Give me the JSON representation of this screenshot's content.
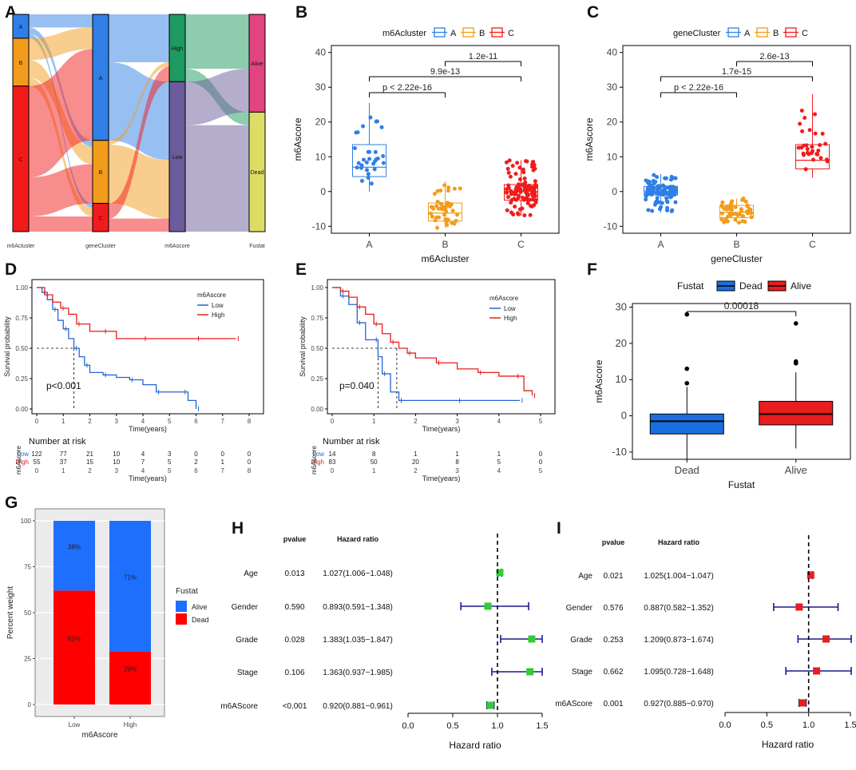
{
  "figure": {
    "panel_labels": [
      "A",
      "B",
      "C",
      "D",
      "E",
      "F",
      "G",
      "H",
      "I"
    ]
  },
  "chart_data": [
    {
      "panel": "A",
      "type": "sankey",
      "axes": [
        "m6Acluster",
        "geneCluster",
        "m6Ascore",
        "Fustat"
      ],
      "columns": [
        {
          "name": "m6Acluster",
          "nodes": [
            {
              "label": "A",
              "value": 0.11,
              "color": "#2f7fe6"
            },
            {
              "label": "B",
              "value": 0.22,
              "color": "#f39c1b"
            },
            {
              "label": "C",
              "value": 0.67,
              "color": "#f21b1b"
            }
          ]
        },
        {
          "name": "geneCluster",
          "nodes": [
            {
              "label": "A",
              "value": 0.58,
              "color": "#2f7fe6"
            },
            {
              "label": "B",
              "value": 0.29,
              "color": "#f39c1b"
            },
            {
              "label": "C",
              "value": 0.13,
              "color": "#f21b1b"
            }
          ]
        },
        {
          "name": "m6Ascore",
          "nodes": [
            {
              "label": "High",
              "value": 0.31,
              "color": "#1e9960"
            },
            {
              "label": "Low",
              "value": 0.69,
              "color": "#6b5b9a"
            }
          ]
        },
        {
          "name": "Fustat",
          "nodes": [
            {
              "label": "Alive",
              "value": 0.45,
              "color": "#e0457f"
            },
            {
              "label": "Dead",
              "value": 0.55,
              "color": "#dddd66"
            }
          ]
        }
      ]
    },
    {
      "panel": "B",
      "type": "boxplot",
      "legend_title": "m6Acluster",
      "groups": [
        "A",
        "B",
        "C"
      ],
      "colors": [
        "#2f7fe6",
        "#f39c1b",
        "#f21b1b"
      ],
      "stats": [
        {
          "min": 0,
          "q1": 4.3,
          "median": 7,
          "q3": 13.5,
          "max": 25.5
        },
        {
          "min": -10.5,
          "q1": -8.5,
          "median": -6.2,
          "q3": -3.3,
          "max": 3
        },
        {
          "min": -7,
          "q1": -2.5,
          "median": 0,
          "q3": 2,
          "max": 9
        }
      ],
      "n_points": [
        30,
        45,
        110
      ],
      "comparisons": [
        {
          "pair": [
            "A",
            "B"
          ],
          "label": "p < 2.22e-16"
        },
        {
          "pair": [
            "A",
            "C"
          ],
          "label": "9.9e-13"
        },
        {
          "pair": [
            "B",
            "C"
          ],
          "label": "1.2e-11"
        }
      ],
      "xlabel": "m6Acluster",
      "ylabel": "m6Ascore",
      "ylim": [
        -12,
        42
      ],
      "yticks": [
        -10,
        0,
        10,
        20,
        30,
        40
      ]
    },
    {
      "panel": "C",
      "type": "boxplot",
      "legend_title": "geneCluster",
      "groups": [
        "A",
        "B",
        "C"
      ],
      "colors": [
        "#2f7fe6",
        "#f39c1b",
        "#f21b1b"
      ],
      "stats": [
        {
          "min": -6,
          "q1": -1,
          "median": 0,
          "q3": 1.5,
          "max": 5
        },
        {
          "min": -9,
          "q1": -7.5,
          "median": -6,
          "q3": -4,
          "max": -2
        },
        {
          "min": 4,
          "q1": 6.5,
          "median": 9,
          "q3": 13.5,
          "max": 28
        }
      ],
      "n_points": [
        100,
        50,
        30
      ],
      "comparisons": [
        {
          "pair": [
            "A",
            "B"
          ],
          "label": "p < 2.22e-16"
        },
        {
          "pair": [
            "A",
            "C"
          ],
          "label": "1.7e-15"
        },
        {
          "pair": [
            "B",
            "C"
          ],
          "label": "2.6e-13"
        }
      ],
      "xlabel": "geneCluster",
      "ylabel": "m6Ascore",
      "ylim": [
        -12,
        42
      ],
      "yticks": [
        -10,
        0,
        10,
        20,
        30,
        40
      ]
    },
    {
      "panel": "D",
      "type": "line",
      "subtype": "kaplan-meier",
      "legend_title": "m6Ascore",
      "series": [
        {
          "name": "Low",
          "color": "#2365d9",
          "x": [
            0,
            0.2,
            0.4,
            0.6,
            0.8,
            1.0,
            1.2,
            1.4,
            1.6,
            1.8,
            2.0,
            2.5,
            3.0,
            3.5,
            4.0,
            4.5,
            5.0,
            5.5,
            5.7,
            6.0
          ],
          "y": [
            1,
            0.96,
            0.9,
            0.82,
            0.73,
            0.66,
            0.58,
            0.5,
            0.43,
            0.36,
            0.3,
            0.28,
            0.26,
            0.24,
            0.2,
            0.14,
            0.14,
            0.14,
            0.07,
            0.0
          ]
        },
        {
          "name": "High",
          "color": "#e81d1d",
          "x": [
            0,
            0.3,
            0.6,
            0.9,
            1.2,
            1.5,
            2.0,
            2.5,
            3.0,
            4.0,
            5.0,
            6.0,
            7.0,
            7.5
          ],
          "y": [
            1,
            0.94,
            0.88,
            0.83,
            0.78,
            0.7,
            0.64,
            0.64,
            0.58,
            0.58,
            0.58,
            0.58,
            0.58,
            0.58
          ]
        }
      ],
      "median_lines": [
        1.4
      ],
      "annotation": "p<0.001",
      "xlabel": "Time(years)",
      "ylabel": "Survival probability",
      "xticks": [
        0,
        1,
        2,
        3,
        4,
        5,
        6,
        7,
        8
      ],
      "yticks": [
        "0.00",
        "0.25",
        "0.50",
        "0.75",
        "1.00"
      ],
      "risk_table": {
        "title": "Number at risk",
        "ylabel": "m6Ascore",
        "rows": [
          {
            "name": "Low",
            "color": "#2365d9",
            "values": [
              "122",
              "77",
              "21",
              "10",
              "4",
              "3",
              "0",
              "0",
              "0"
            ]
          },
          {
            "name": "High",
            "color": "#e81d1d",
            "values": [
              "55",
              "37",
              "15",
              "10",
              "7",
              "5",
              "2",
              "1",
              "0"
            ]
          }
        ],
        "ticks": [
          "0",
          "1",
          "2",
          "3",
          "4",
          "5",
          "6",
          "7",
          "8"
        ],
        "xlabel": "Time(years)"
      }
    },
    {
      "panel": "E",
      "type": "line",
      "subtype": "kaplan-meier",
      "legend_title": "m6Ascore",
      "series": [
        {
          "name": "Low",
          "color": "#2365d9",
          "x": [
            0,
            0.2,
            0.4,
            0.6,
            0.8,
            1.0,
            1.1,
            1.2,
            1.4,
            1.6,
            2.0,
            3.0,
            4.0,
            4.5
          ],
          "y": [
            1,
            0.93,
            0.86,
            0.71,
            0.57,
            0.57,
            0.43,
            0.29,
            0.14,
            0.07,
            0.07,
            0.07,
            0.07,
            0.07
          ]
        },
        {
          "name": "High",
          "color": "#e81d1d",
          "x": [
            0,
            0.2,
            0.4,
            0.6,
            0.8,
            1.0,
            1.2,
            1.4,
            1.6,
            1.8,
            2.0,
            2.5,
            3.0,
            3.5,
            4.0,
            4.4,
            4.6,
            4.8
          ],
          "y": [
            1,
            0.97,
            0.92,
            0.84,
            0.78,
            0.7,
            0.62,
            0.55,
            0.5,
            0.46,
            0.42,
            0.38,
            0.33,
            0.3,
            0.27,
            0.27,
            0.15,
            0.11
          ]
        }
      ],
      "median_lines": [
        1.1,
        1.55
      ],
      "annotation": "p=0.040",
      "xlabel": "Time(years)",
      "ylabel": "Survival probability",
      "xticks": [
        0,
        1,
        2,
        3,
        4,
        5
      ],
      "yticks": [
        "0.00",
        "0.25",
        "0.50",
        "0.75",
        "1.00"
      ],
      "risk_table": {
        "title": "Number at risk",
        "ylabel": "m6Ascore",
        "rows": [
          {
            "name": "Low",
            "color": "#2365d9",
            "values": [
              "14",
              "8",
              "1",
              "1",
              "1",
              "0"
            ]
          },
          {
            "name": "High",
            "color": "#e81d1d",
            "values": [
              "83",
              "50",
              "20",
              "8",
              "5",
              "0"
            ]
          }
        ],
        "ticks": [
          "0",
          "1",
          "2",
          "3",
          "4",
          "5"
        ],
        "xlabel": "Time(years)"
      }
    },
    {
      "panel": "F",
      "type": "boxplot",
      "legend_title": "Fustat",
      "groups": [
        "Dead",
        "Alive"
      ],
      "colors": [
        "#1a6fe0",
        "#e81d1d"
      ],
      "stats": [
        {
          "min": -12,
          "q1": -5,
          "median": -1.5,
          "q3": 0.5,
          "max": 8
        },
        {
          "min": -9,
          "q1": -2.5,
          "median": 0.5,
          "q3": 4,
          "max": 12
        }
      ],
      "outliers": [
        [
          9,
          13,
          28
        ],
        [
          14.5,
          15,
          25.5
        ]
      ],
      "comparisons": [
        {
          "pair": [
            "Dead",
            "Alive"
          ],
          "label": "0.00018"
        }
      ],
      "xlabel": "Fustat",
      "ylabel": "m6Ascore",
      "ylim": [
        -12,
        31
      ],
      "yticks": [
        -10,
        0,
        10,
        20,
        30
      ]
    },
    {
      "panel": "G",
      "type": "bar",
      "stacked": true,
      "categories": [
        "Low",
        "High"
      ],
      "series": [
        {
          "name": "Dead",
          "color": "#ff0000",
          "values": [
            62,
            29
          ]
        },
        {
          "name": "Alive",
          "color": "#1f6fff",
          "values": [
            38,
            71
          ]
        }
      ],
      "labels": [
        [
          "62%",
          "38%"
        ],
        [
          "29%",
          "71%"
        ]
      ],
      "legend_title": "Fustat",
      "xlabel": "m6Ascore",
      "ylabel": "Percent weight",
      "ylim": [
        0,
        100
      ],
      "yticks": [
        0,
        25,
        50,
        75,
        100
      ]
    },
    {
      "panel": "H",
      "type": "forest",
      "headers": {
        "pvalue": "pvalue",
        "hr": "Hazard ratio"
      },
      "marker_color": "#33cc33",
      "rows": [
        {
          "label": "Age",
          "pvalue": "0.013",
          "hr_text": "1.027(1.006−1.048)",
          "hr": 1.027,
          "lo": 1.006,
          "hi": 1.048
        },
        {
          "label": "Gender",
          "pvalue": "0.590",
          "hr_text": "0.893(0.591−1.348)",
          "hr": 0.893,
          "lo": 0.591,
          "hi": 1.348
        },
        {
          "label": "Grade",
          "pvalue": "0.028",
          "hr_text": "1.383(1.035−1.847)",
          "hr": 1.383,
          "lo": 1.035,
          "hi": 1.847
        },
        {
          "label": "Stage",
          "pvalue": "0.106",
          "hr_text": "1.363(0.937−1.985)",
          "hr": 1.363,
          "lo": 0.937,
          "hi": 1.985
        },
        {
          "label": "m6AScore",
          "pvalue": "<0.001",
          "hr_text": "0.920(0.881−0.961)",
          "hr": 0.92,
          "lo": 0.881,
          "hi": 0.961
        }
      ],
      "xticks": [
        "0.0",
        "0.5",
        "1.0",
        "1.5"
      ],
      "xlabel": "Hazard ratio"
    },
    {
      "panel": "I",
      "type": "forest",
      "headers": {
        "pvalue": "pvalue",
        "hr": "Hazard ratio"
      },
      "marker_color": "#e81d1d",
      "rows": [
        {
          "label": "Age",
          "pvalue": "0.021",
          "hr_text": "1.025(1.004−1.047)",
          "hr": 1.025,
          "lo": 1.004,
          "hi": 1.047
        },
        {
          "label": "Gender",
          "pvalue": "0.576",
          "hr_text": "0.887(0.582−1.352)",
          "hr": 0.887,
          "lo": 0.582,
          "hi": 1.352
        },
        {
          "label": "Grade",
          "pvalue": "0.253",
          "hr_text": "1.209(0.873−1.674)",
          "hr": 1.209,
          "lo": 0.873,
          "hi": 1.674
        },
        {
          "label": "Stage",
          "pvalue": "0.662",
          "hr_text": "1.095(0.728−1.648)",
          "hr": 1.095,
          "lo": 0.728,
          "hi": 1.648
        },
        {
          "label": "m6AScore",
          "pvalue": "0.001",
          "hr_text": "0.927(0.885−0.970)",
          "hr": 0.927,
          "lo": 0.885,
          "hi": 0.97
        }
      ],
      "xticks": [
        "0.0",
        "0.5",
        "1.0",
        "1.5"
      ],
      "xlabel": "Hazard ratio"
    }
  ]
}
